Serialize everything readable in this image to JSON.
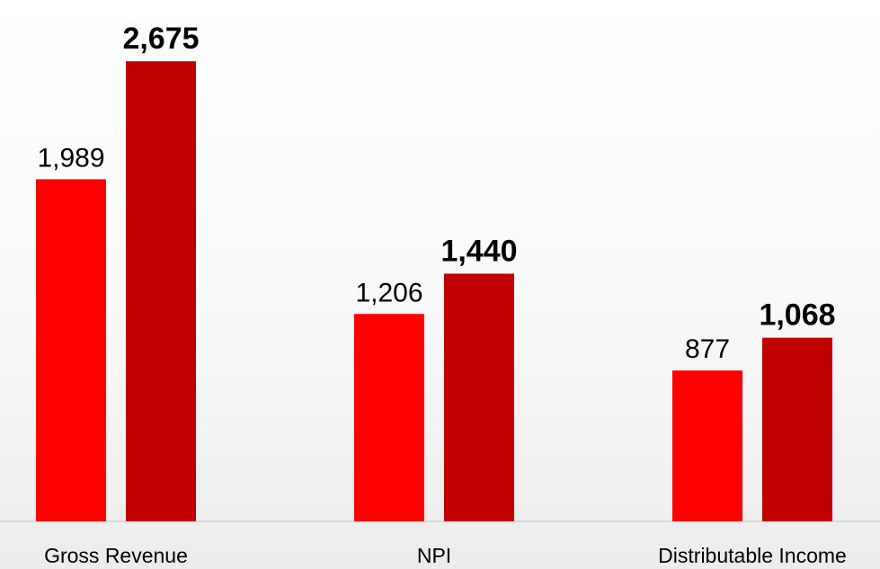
{
  "chart_data": {
    "type": "bar",
    "categories": [
      "Gross Revenue",
      "NPI",
      "Distributable Income"
    ],
    "series": [
      {
        "color": "#ff0000",
        "values": [
          1989,
          1206,
          877
        ],
        "value_labels": [
          "1,989",
          "1,206",
          "877"
        ]
      },
      {
        "color": "#c00000",
        "values": [
          2675,
          1440,
          1068
        ],
        "value_labels": [
          "2,675",
          "1,440",
          "1,068"
        ]
      }
    ],
    "ylim": [
      0,
      3000
    ]
  }
}
